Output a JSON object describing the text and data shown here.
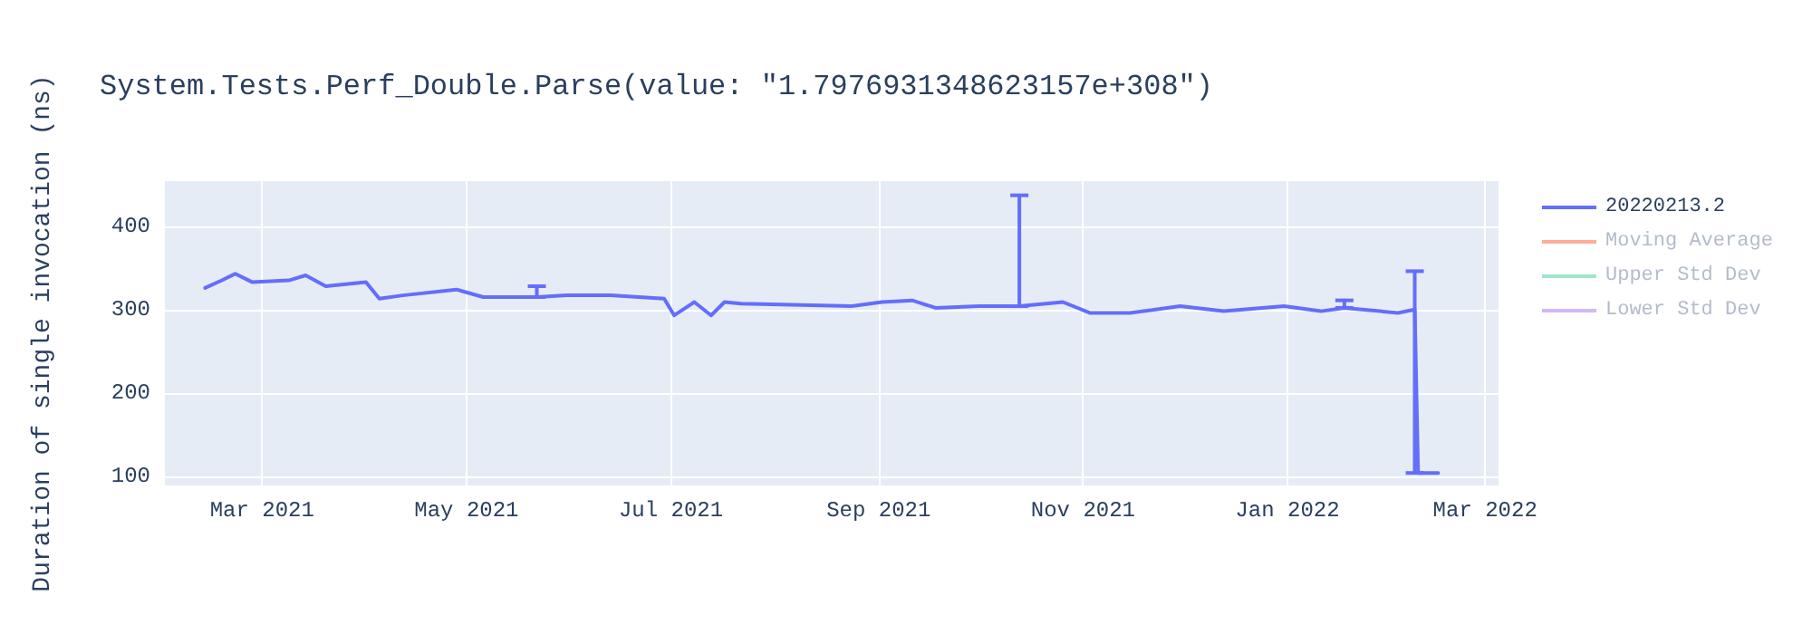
{
  "chart_data": {
    "type": "line",
    "title": "System.Tests.Perf_Double.Parse(value: \"1.7976931348623157e+308\")",
    "ylabel": "Duration of single invocation (ns)",
    "x": [
      "2021-02-12",
      "2021-02-17",
      "2021-02-21",
      "2021-02-26",
      "2021-03-09",
      "2021-03-14",
      "2021-03-20",
      "2021-04-01",
      "2021-04-05",
      "2021-04-12",
      "2021-04-28",
      "2021-05-06",
      "2021-05-22",
      "2021-05-31",
      "2021-06-13",
      "2021-06-29",
      "2021-07-02",
      "2021-07-08",
      "2021-07-13",
      "2021-07-17",
      "2021-07-22",
      "2021-08-24",
      "2021-09-02",
      "2021-09-11",
      "2021-09-18",
      "2021-10-01",
      "2021-10-13",
      "2021-10-26",
      "2021-11-03",
      "2021-11-15",
      "2021-11-30",
      "2021-12-13",
      "2021-12-31",
      "2022-01-11",
      "2022-01-18",
      "2022-02-03",
      "2022-02-08",
      "2022-02-09",
      "2022-02-15"
    ],
    "series": [
      {
        "name": "20220213.2",
        "color": "#636efa",
        "values": [
          326,
          335,
          343,
          333,
          335,
          341,
          328,
          333,
          313,
          317,
          324,
          315,
          315,
          317,
          317,
          313,
          293,
          309,
          293,
          309,
          307,
          304,
          309,
          311,
          302,
          304,
          304,
          309,
          296,
          296,
          304,
          298,
          304,
          298,
          302,
          296,
          300,
          104,
          104
        ],
        "errors": [
          null,
          null,
          null,
          null,
          null,
          null,
          null,
          null,
          null,
          null,
          null,
          null,
          [
            315,
            328
          ],
          null,
          null,
          null,
          null,
          null,
          null,
          null,
          null,
          null,
          null,
          null,
          null,
          null,
          [
            304,
            437
          ],
          null,
          null,
          null,
          null,
          null,
          null,
          null,
          [
            302,
            311
          ],
          null,
          [
            104,
            346
          ],
          null,
          null
        ]
      },
      {
        "name": "Moving Average",
        "color": "#fdad9a",
        "values": [
          null,
          null,
          null,
          null,
          null,
          null,
          null,
          null,
          null,
          null,
          null,
          null,
          null,
          null,
          null,
          null,
          null,
          null,
          null,
          null,
          null,
          null,
          null,
          null,
          null,
          null,
          null,
          null,
          null,
          null,
          null,
          null,
          null,
          null,
          null,
          null,
          null,
          null,
          null
        ]
      },
      {
        "name": "Upper Std Dev",
        "color": "#9ee8c8",
        "values": [
          null,
          null,
          null,
          null,
          null,
          null,
          null,
          null,
          null,
          null,
          null,
          null,
          null,
          null,
          null,
          null,
          null,
          null,
          null,
          null,
          null,
          null,
          null,
          null,
          null,
          null,
          null,
          null,
          null,
          null,
          null,
          null,
          null,
          null,
          null,
          null,
          null,
          null,
          null
        ]
      },
      {
        "name": "Lower Std Dev",
        "color": "#d2b8f8",
        "values": [
          null,
          null,
          null,
          null,
          null,
          null,
          null,
          null,
          null,
          null,
          null,
          null,
          null,
          null,
          null,
          null,
          null,
          null,
          null,
          null,
          null,
          null,
          null,
          null,
          null,
          null,
          null,
          null,
          null,
          null,
          null,
          null,
          null,
          null,
          null,
          null,
          null,
          null,
          null
        ]
      }
    ],
    "xlim": [
      "2021-01-31",
      "2022-03-05"
    ],
    "xticks": [
      {
        "value": "2021-03-01",
        "label": "Mar 2021"
      },
      {
        "value": "2021-05-01",
        "label": "May 2021"
      },
      {
        "value": "2021-07-01",
        "label": "Jul 2021"
      },
      {
        "value": "2021-09-01",
        "label": "Sep 2021"
      },
      {
        "value": "2021-11-01",
        "label": "Nov 2021"
      },
      {
        "value": "2022-01-01",
        "label": "Jan 2022"
      },
      {
        "value": "2022-03-01",
        "label": "Mar 2022"
      }
    ],
    "ylim": [
      89,
      454
    ],
    "yticks": [
      100,
      200,
      300,
      400
    ],
    "grid": true,
    "legend": "top right"
  }
}
